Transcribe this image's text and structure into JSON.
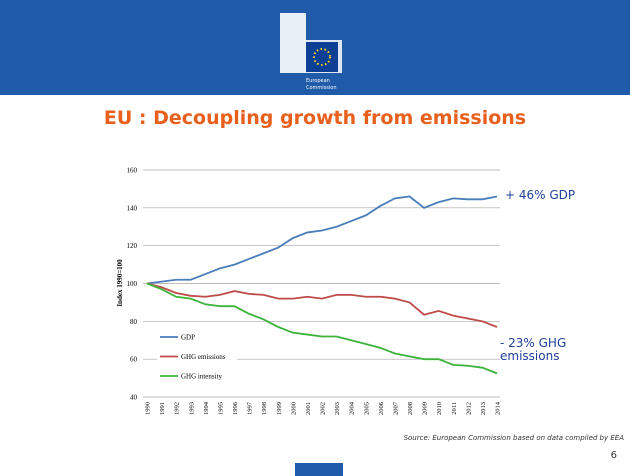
{
  "logo": {
    "line1": "European",
    "line2": "Commission"
  },
  "page_number": "6",
  "source": "Source: European Commission based on data compiled by EEA",
  "chart_data": {
    "type": "line",
    "title": "EU : Decoupling growth from emissions",
    "y_label": "Index 1990=100",
    "categories": [
      "1990",
      "1991",
      "1992",
      "1993",
      "1994",
      "1995",
      "1996",
      "1997",
      "1998",
      "1999",
      "2000",
      "2001",
      "2002",
      "2003",
      "2004",
      "2005",
      "2006",
      "2007",
      "2008",
      "2009",
      "2010",
      "2011",
      "2012",
      "2013",
      "2014"
    ],
    "series": [
      {
        "name": "GDP",
        "color": "#4a7ebb",
        "values": [
          100,
          101,
          102,
          102,
          105,
          108,
          110,
          113,
          116,
          119,
          124,
          127,
          128,
          130,
          133,
          136,
          141,
          145,
          146,
          140,
          143,
          145,
          144.5,
          144.5,
          146
        ]
      },
      {
        "name": "GHG emissions",
        "color": "#be4b48",
        "values": [
          100,
          98,
          95,
          93.5,
          93,
          94,
          96,
          94.5,
          94,
          92,
          92,
          93,
          92,
          94,
          94,
          93,
          93,
          92,
          90,
          83.5,
          85.5,
          83,
          81.5,
          80,
          77
        ]
      },
      {
        "name": "GHG intensity",
        "color": "#3cb43c",
        "values": [
          100,
          97,
          93,
          92,
          89,
          88,
          88,
          84,
          81,
          77,
          74,
          73,
          72,
          72,
          70,
          68,
          66,
          63,
          61.5,
          60,
          60,
          57,
          56.5,
          55.5,
          52.5
        ]
      }
    ],
    "annotations": [
      "+ 46% GDP",
      "- 23% GHG",
      "emissions"
    ],
    "ylim": [
      40,
      160
    ],
    "yticks": [
      40,
      60,
      80,
      100,
      120,
      140,
      160
    ],
    "grid": true
  }
}
